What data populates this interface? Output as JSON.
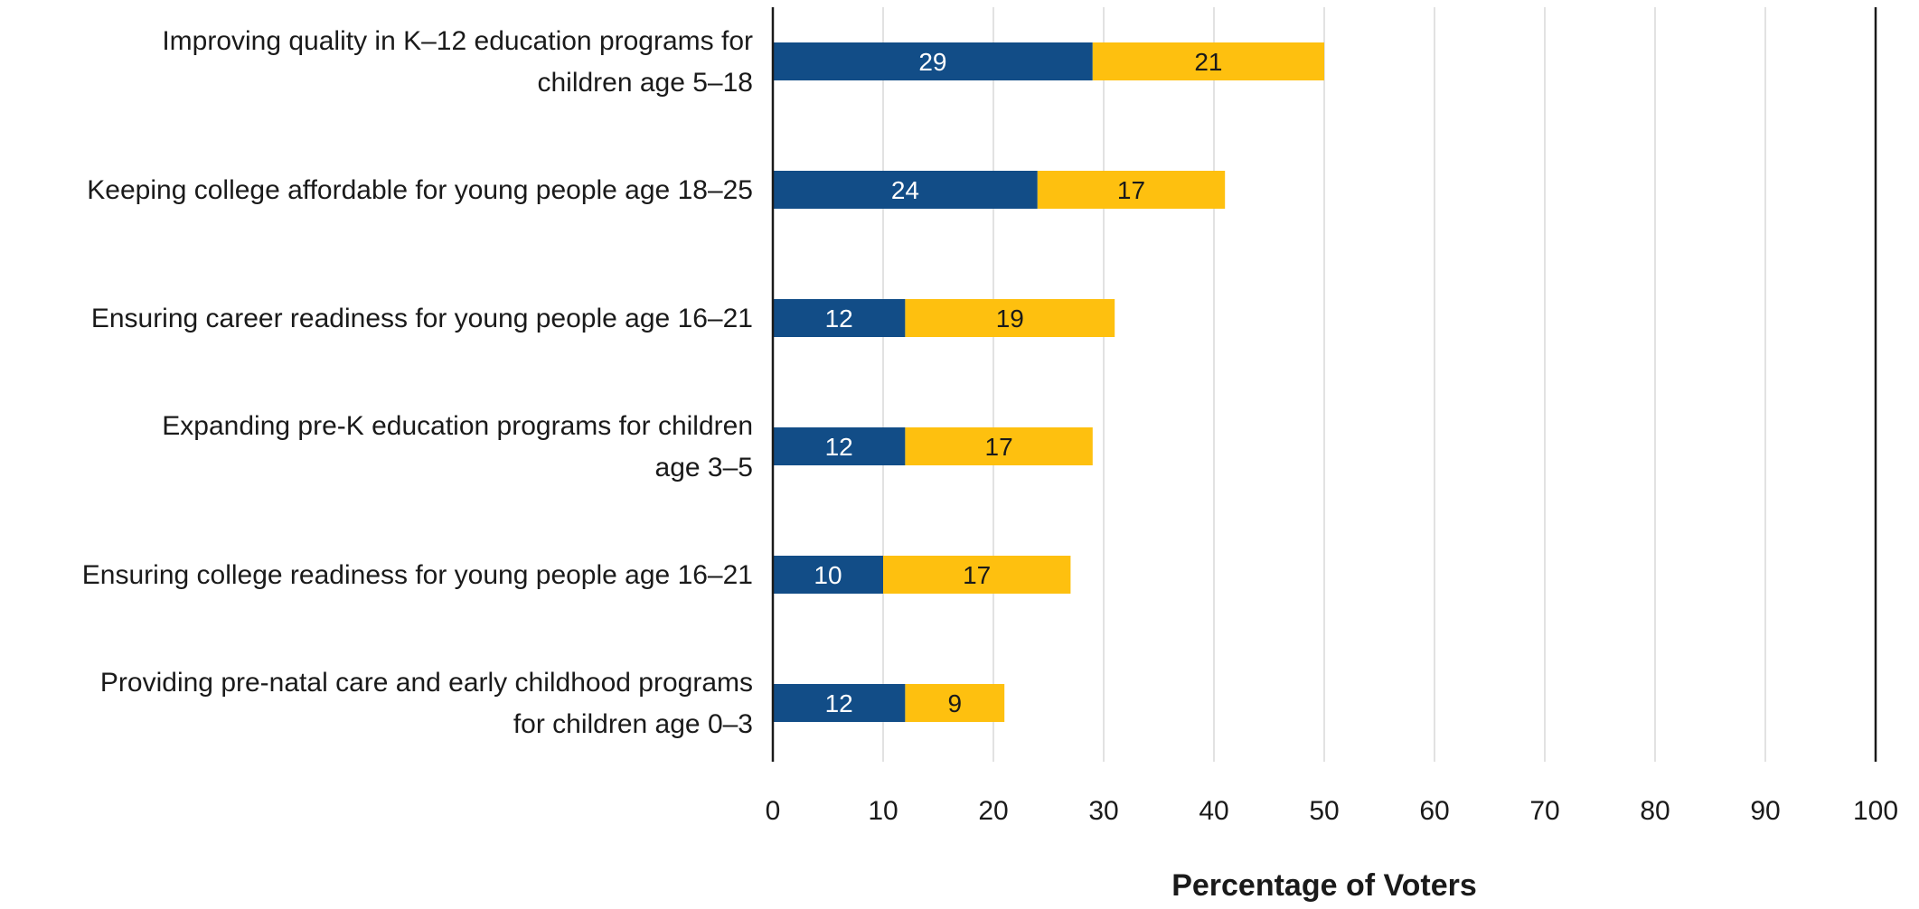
{
  "chart_data": {
    "type": "bar",
    "orientation": "horizontal",
    "stacked": true,
    "categories": [
      [
        "Improving quality in K–12 education programs for",
        "children age 5–18"
      ],
      [
        "Keeping college affordable for young people age 18–25"
      ],
      [
        "Ensuring career readiness for young people age 16–21"
      ],
      [
        "Expanding pre-K education programs for children",
        "age 3–5"
      ],
      [
        "Ensuring college readiness for young people age 16–21"
      ],
      [
        "Providing pre-natal care and early childhood programs",
        "for children age 0–3"
      ]
    ],
    "series": [
      {
        "values": [
          29,
          24,
          12,
          12,
          10,
          12
        ],
        "color": "#124d87",
        "label_color": "#ffffff"
      },
      {
        "values": [
          21,
          17,
          19,
          17,
          17,
          9
        ],
        "color": "#fec00f",
        "label_color": "#1a1a1a"
      }
    ],
    "xlabel": "Percentage of Voters",
    "xlim": [
      0,
      100
    ],
    "xticks": [
      0,
      10,
      20,
      30,
      40,
      50,
      60,
      70,
      80,
      90,
      100
    ],
    "grid": true,
    "legend": "none"
  }
}
